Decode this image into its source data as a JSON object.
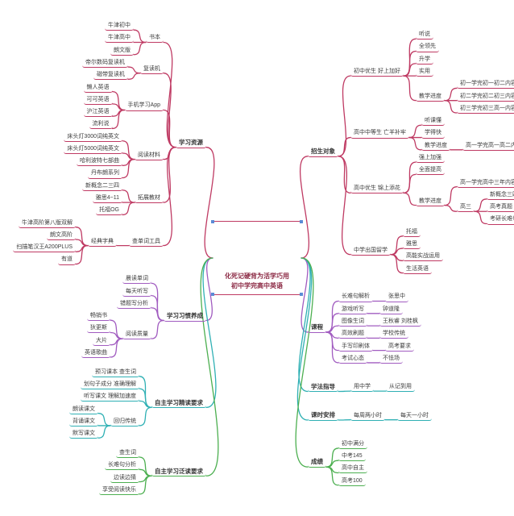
{
  "center": {
    "title": "化死记硬背为活学巧用\n初中学完高中英语",
    "accent_color": "#bf3a63",
    "dot_color": "#5b8bd6"
  },
  "mindmap": {
    "left": [
      {
        "label": "学习资源",
        "color": "#bf3a63",
        "children": [
          {
            "label": "书本",
            "children": [
              {
                "label": "牛津初中"
              },
              {
                "label": "牛津高中"
              },
              {
                "label": "朗文版"
              }
            ]
          },
          {
            "label": "复读机",
            "children": [
              {
                "label": "帝尔数码复读机"
              },
              {
                "label": "磁带复读机"
              }
            ]
          },
          {
            "label": "手机学习App",
            "children": [
              {
                "label": "懒人英语"
              },
              {
                "label": "可可英语"
              },
              {
                "label": "沪江英语"
              },
              {
                "label": "流利说"
              }
            ]
          },
          {
            "label": "阅读材料",
            "children": [
              {
                "label": "床头灯3000词纯英文"
              },
              {
                "label": "床头灯5000词纯英文"
              },
              {
                "label": "哈利波特七部曲"
              },
              {
                "label": "丹布朗系列"
              }
            ]
          },
          {
            "label": "拓展教材",
            "children": [
              {
                "label": "新概念二三四"
              },
              {
                "label": "雅思4~11"
              },
              {
                "label": "托福OG"
              }
            ]
          },
          {
            "label": "查单词工具",
            "children": [
              {
                "label": "经典字典",
                "children": [
                  {
                    "label": "牛津高阶第八版双解"
                  },
                  {
                    "label": "朗文高阶"
                  },
                  {
                    "label": "扫描笔汉王A200PLUS"
                  },
                  {
                    "label": "有道"
                  }
                ]
              }
            ]
          }
        ]
      },
      {
        "label": "学习习惯养成",
        "color": "#a15cc0",
        "children": [
          {
            "label": "晨读单词"
          },
          {
            "label": "每天听写"
          },
          {
            "label": "错题写分析"
          },
          {
            "label": "阅读质量",
            "children": [
              {
                "label": "畅销书"
              },
              {
                "label": "狄更斯"
              },
              {
                "label": "大片"
              },
              {
                "label": "英语歌曲"
              }
            ]
          }
        ]
      },
      {
        "label": "自主学习精读要求",
        "color": "#2fb0b4",
        "children": [
          {
            "label": "预习课本 查生词"
          },
          {
            "label": "划句子成分 准确理解"
          },
          {
            "label": "听写课文 理解加速度"
          },
          {
            "label": "回归传统",
            "children": [
              {
                "label": "朗读课文"
              },
              {
                "label": "背诵课文"
              },
              {
                "label": "默写课文"
              }
            ]
          }
        ]
      },
      {
        "label": "自主学习泛读要求",
        "color": "#4caf50",
        "children": [
          {
            "label": "查生词"
          },
          {
            "label": "长难句分析"
          },
          {
            "label": "边读边猜"
          },
          {
            "label": "享受阅读快乐"
          }
        ]
      }
    ],
    "right": [
      {
        "label": "招生对象",
        "color": "#bf3a63",
        "children": [
          {
            "label": "初中优生 好上加好",
            "children": [
              {
                "label": "听说"
              },
              {
                "label": "全领先"
              },
              {
                "label": "升学"
              },
              {
                "label": "实用"
              },
              {
                "label": "教学进度",
                "children": [
                  {
                    "label": "初一学完初一初二内容"
                  },
                  {
                    "label": "初二学完初二初三内容"
                  },
                  {
                    "label": "初三学完初三高一内容"
                  }
                ]
              }
            ]
          },
          {
            "label": "高中中等生 亡羊补牢",
            "children": [
              {
                "label": "听课懂"
              },
              {
                "label": "学得快"
              },
              {
                "label": "教学进度",
                "children": [
                  {
                    "label": "高一学完高一高二内容"
                  }
                ]
              }
            ]
          },
          {
            "label": "高中优生 锦上添花",
            "children": [
              {
                "label": "强上加强"
              },
              {
                "label": "全面提高"
              },
              {
                "label": "教学进度",
                "children": [
                  {
                    "label": "高一学完高中三年内容"
                  },
                  {
                    "label": "高三",
                    "children": [
                      {
                        "label": "新概念三四"
                      },
                      {
                        "label": "高考真题"
                      },
                      {
                        "label": "考研长难句"
                      }
                    ]
                  }
                ]
              }
            ]
          },
          {
            "label": "中学出国留学",
            "children": [
              {
                "label": "托福"
              },
              {
                "label": "雅思"
              },
              {
                "label": "高能实战运用"
              },
              {
                "label": "生活英语"
              }
            ]
          }
        ]
      },
      {
        "label": "课程",
        "color": "#a15cc0",
        "children": [
          {
            "label": "长难句解析",
            "children": [
              {
                "label": "张思中"
              }
            ]
          },
          {
            "label": "游戏听写",
            "children": [
              {
                "label": "钟道隆"
              }
            ]
          },
          {
            "label": "图像生词",
            "children": [
              {
                "label": "王秋睿 刘桂枫"
              }
            ]
          },
          {
            "label": "高效刷题",
            "children": [
              {
                "label": "学校传统"
              }
            ]
          },
          {
            "label": "手写印刷体",
            "children": [
              {
                "label": "高考要求"
              }
            ]
          },
          {
            "label": "考试心态",
            "children": [
              {
                "label": "不怯场"
              }
            ]
          }
        ]
      },
      {
        "label": "学法指导",
        "color": "#2fb0b4",
        "children": [
          {
            "label": "用中学",
            "children": [
              {
                "label": "从记到用"
              }
            ]
          }
        ]
      },
      {
        "label": "课时安排",
        "color": "#2fb0b4",
        "children": [
          {
            "label": "每周两小时",
            "children": [
              {
                "label": "每天一小时"
              }
            ]
          }
        ]
      },
      {
        "label": "成绩",
        "color": "#4caf50",
        "children": [
          {
            "label": "初中满分"
          },
          {
            "label": "中考145"
          },
          {
            "label": "高中自主"
          },
          {
            "label": "高考100"
          }
        ]
      }
    ]
  }
}
